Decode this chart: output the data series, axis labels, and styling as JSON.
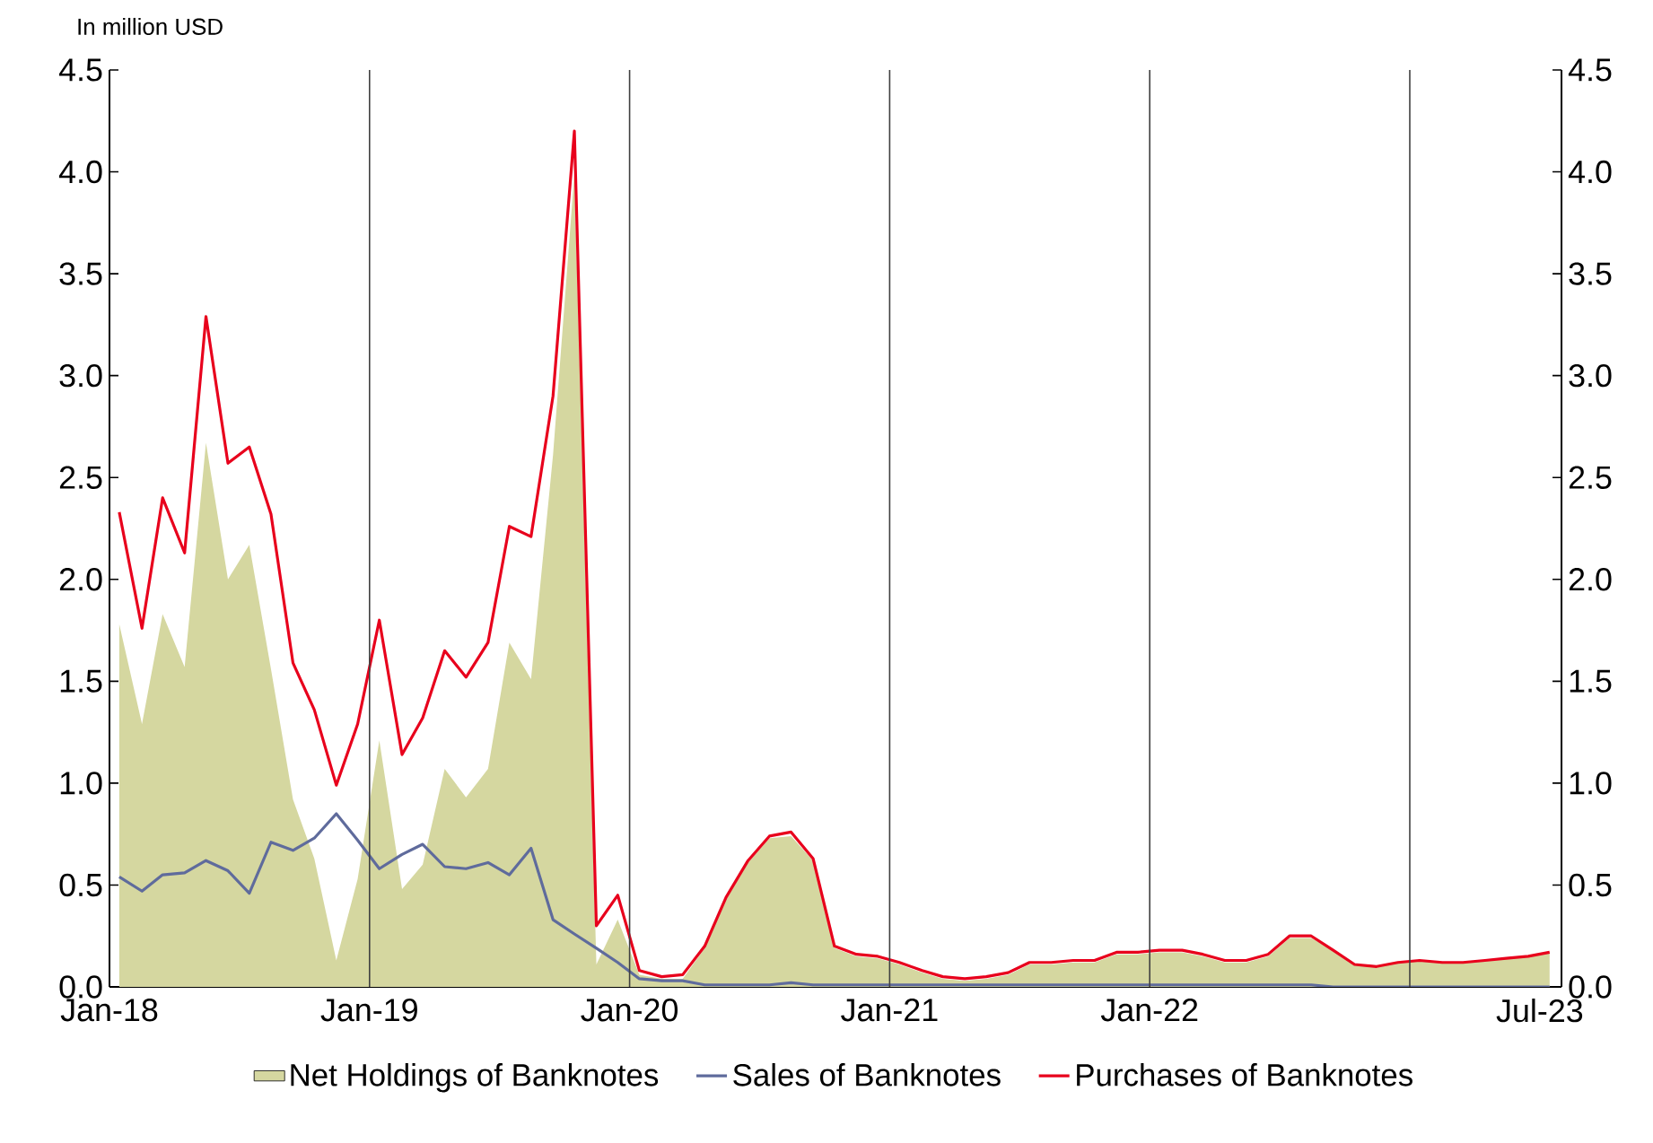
{
  "chart_data": {
    "type": "line",
    "ylabel": "In million USD",
    "x": [
      "2018-01-15",
      "2018-02-15",
      "2018-03-15",
      "2018-04-15",
      "2018-05-15",
      "2018-06-15",
      "2018-07-15",
      "2018-08-15",
      "2018-09-15",
      "2018-10-15",
      "2018-11-15",
      "2018-12-15",
      "2019-01-15",
      "2019-02-15",
      "2019-03-15",
      "2019-04-15",
      "2019-05-15",
      "2019-06-15",
      "2019-07-15",
      "2019-08-15",
      "2019-09-15",
      "2019-10-15",
      "2019-11-15",
      "2019-12-15",
      "2020-01-15",
      "2020-02-15",
      "2020-03-15",
      "2020-04-15",
      "2020-05-15",
      "2020-06-15",
      "2020-07-15",
      "2020-08-15",
      "2020-09-15",
      "2020-10-15",
      "2020-11-15",
      "2020-12-15",
      "2021-01-15",
      "2021-02-15",
      "2021-03-15",
      "2021-04-15",
      "2021-05-15",
      "2021-06-15",
      "2021-07-15",
      "2021-08-15",
      "2021-09-15",
      "2021-10-15",
      "2021-11-15",
      "2021-12-15",
      "2022-01-15",
      "2022-02-15",
      "2022-03-15",
      "2022-04-15",
      "2022-05-15",
      "2022-06-15",
      "2022-07-15",
      "2022-08-15",
      "2022-09-15",
      "2022-10-15",
      "2022-11-15",
      "2022-12-15",
      "2023-01-15",
      "2023-02-15",
      "2023-03-15",
      "2023-04-15",
      "2023-05-15",
      "2023-06-15",
      "2023-07-15"
    ],
    "series": [
      {
        "name": "Net Holdings of Banknotes",
        "type": "area",
        "color": "#d5d7a0",
        "values": [
          1.78,
          1.29,
          1.83,
          1.57,
          2.67,
          2.0,
          2.17,
          1.56,
          0.92,
          0.63,
          0.13,
          0.53,
          1.21,
          0.48,
          0.6,
          1.07,
          0.93,
          1.07,
          1.69,
          1.51,
          2.61,
          3.99,
          0.11,
          0.33,
          0.06,
          0.04,
          0.04,
          0.19,
          0.43,
          0.61,
          0.73,
          0.74,
          0.62,
          0.19,
          0.15,
          0.14,
          0.11,
          0.07,
          0.04,
          0.03,
          0.04,
          0.06,
          0.11,
          0.11,
          0.12,
          0.12,
          0.16,
          0.16,
          0.17,
          0.17,
          0.15,
          0.12,
          0.12,
          0.15,
          0.24,
          0.24,
          0.18,
          0.11,
          0.1,
          0.12,
          0.13,
          0.12,
          0.12,
          0.13,
          0.14,
          0.15,
          0.17
        ]
      },
      {
        "name": "Sales of Banknotes",
        "color": "#5f6b9c",
        "values": [
          0.54,
          0.47,
          0.55,
          0.56,
          0.62,
          0.57,
          0.46,
          0.71,
          0.67,
          0.73,
          0.85,
          0.72,
          0.58,
          0.65,
          0.7,
          0.59,
          0.58,
          0.61,
          0.55,
          0.68,
          0.33,
          0.26,
          0.19,
          0.12,
          0.04,
          0.03,
          0.03,
          0.01,
          0.01,
          0.01,
          0.01,
          0.02,
          0.01,
          0.01,
          0.01,
          0.01,
          0.01,
          0.01,
          0.01,
          0.01,
          0.01,
          0.01,
          0.01,
          0.01,
          0.01,
          0.01,
          0.01,
          0.01,
          0.01,
          0.01,
          0.01,
          0.01,
          0.01,
          0.01,
          0.01,
          0.01,
          0,
          0,
          0,
          0,
          0,
          0,
          0,
          0,
          0,
          0,
          0
        ]
      },
      {
        "name": "Purchases of Banknotes",
        "color": "#e8001c",
        "values": [
          2.33,
          1.76,
          2.4,
          2.13,
          3.29,
          2.57,
          2.65,
          2.32,
          1.59,
          1.36,
          0.99,
          1.29,
          1.8,
          1.14,
          1.32,
          1.65,
          1.52,
          1.69,
          2.26,
          2.21,
          2.9,
          4.2,
          0.3,
          0.45,
          0.08,
          0.05,
          0.06,
          0.2,
          0.44,
          0.62,
          0.74,
          0.76,
          0.63,
          0.2,
          0.16,
          0.15,
          0.12,
          0.08,
          0.05,
          0.04,
          0.05,
          0.07,
          0.12,
          0.12,
          0.13,
          0.13,
          0.17,
          0.17,
          0.18,
          0.18,
          0.16,
          0.13,
          0.13,
          0.16,
          0.25,
          0.25,
          0.18,
          0.11,
          0.1,
          0.12,
          0.13,
          0.12,
          0.12,
          0.13,
          0.14,
          0.15,
          0.17
        ]
      }
    ],
    "xlim": [
      "2018-01-01",
      "2023-08-01"
    ],
    "xticks": [
      {
        "value": "2018-01-01",
        "label": "Jan-18"
      },
      {
        "value": "2019-01-01",
        "label": "Jan-19"
      },
      {
        "value": "2020-01-01",
        "label": "Jan-20"
      },
      {
        "value": "2021-01-01",
        "label": "Jan-21"
      },
      {
        "value": "2022-01-01",
        "label": "Jan-22"
      },
      {
        "value": "2023-07-01",
        "label": "Jul-23"
      }
    ],
    "ylim": [
      0,
      4.5
    ],
    "yticks": [
      {
        "value": 0,
        "label": "0.0"
      },
      {
        "value": 0.5,
        "label": "0.5"
      },
      {
        "value": 1,
        "label": "1.0"
      },
      {
        "value": 1.5,
        "label": "1.5"
      },
      {
        "value": 2,
        "label": "2.0"
      },
      {
        "value": 2.5,
        "label": "2.5"
      },
      {
        "value": 3,
        "label": "3.0"
      },
      {
        "value": 3.5,
        "label": "3.5"
      },
      {
        "value": 4,
        "label": "4.0"
      },
      {
        "value": 4.5,
        "label": "4.5"
      }
    ],
    "y2lim": [
      0,
      4.5
    ],
    "y2ticks": [
      {
        "value": 0,
        "label": "0.0"
      },
      {
        "value": 0.5,
        "label": "0.5"
      },
      {
        "value": 1,
        "label": "1.0"
      },
      {
        "value": 1.5,
        "label": "1.5"
      },
      {
        "value": 2,
        "label": "2.0"
      },
      {
        "value": 2.5,
        "label": "2.5"
      },
      {
        "value": 3,
        "label": "3.0"
      },
      {
        "value": 3.5,
        "label": "3.5"
      },
      {
        "value": 4,
        "label": "4.0"
      },
      {
        "value": 4.5,
        "label": "4.5"
      }
    ],
    "ref_lines": [
      {
        "axis": "x",
        "value": "2019-01-01",
        "color": "#404040"
      },
      {
        "axis": "x",
        "value": "2020-01-01",
        "color": "#404040"
      },
      {
        "axis": "x",
        "value": "2021-01-01",
        "color": "#404040"
      },
      {
        "axis": "x",
        "value": "2022-01-01",
        "color": "#404040"
      },
      {
        "axis": "x",
        "value": "2023-01-01",
        "color": "#404040"
      }
    ],
    "legend": "bottom",
    "grid": false
  }
}
